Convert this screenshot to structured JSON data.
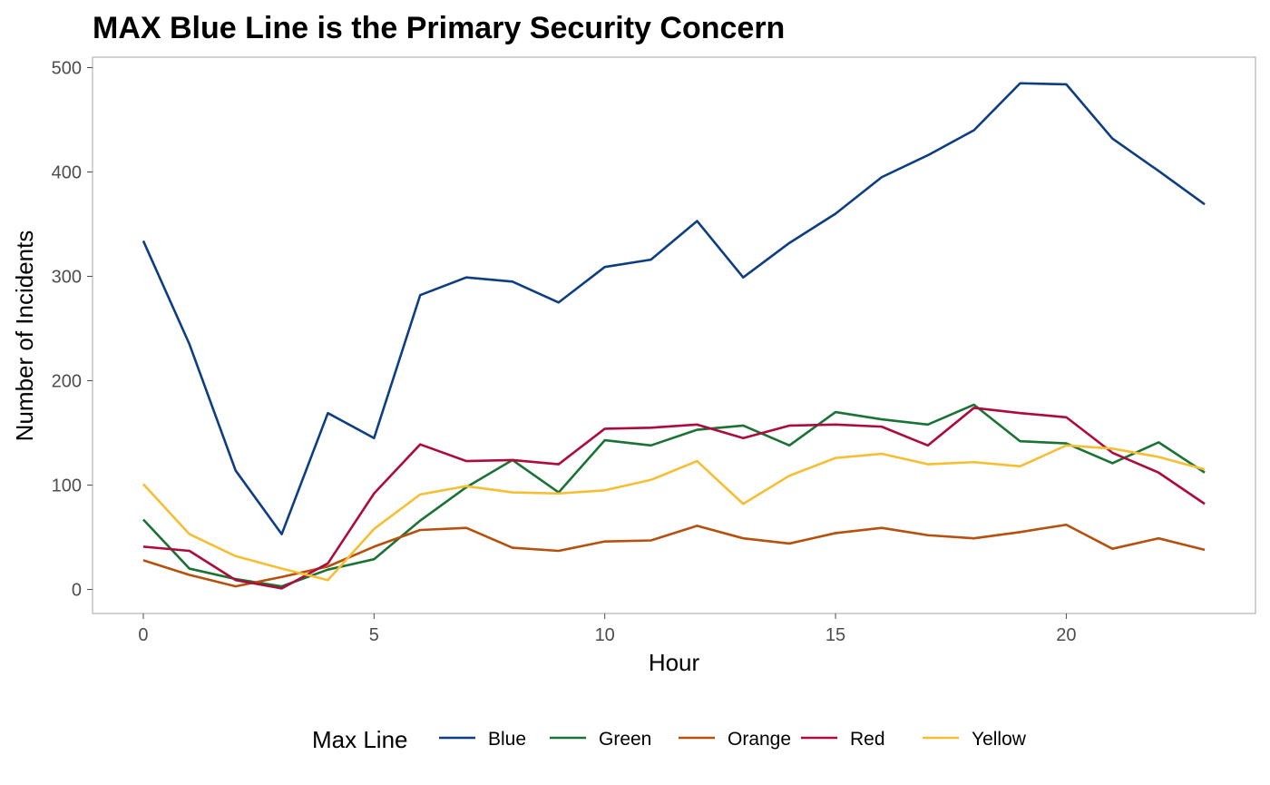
{
  "chart_data": {
    "type": "line",
    "title": "MAX Blue Line is the Primary Security Concern",
    "xlabel": "Hour",
    "ylabel": "Number of Incidents",
    "xlim": [
      -1.1,
      24.1
    ],
    "ylim": [
      -23,
      510
    ],
    "x_ticks": [
      0,
      5,
      10,
      15,
      20
    ],
    "y_ticks": [
      0,
      100,
      200,
      300,
      400,
      500
    ],
    "grid": false,
    "legend": {
      "title": "Max Line",
      "position": "bottom"
    },
    "x": [
      0,
      1,
      2,
      3,
      4,
      5,
      6,
      7,
      8,
      9,
      10,
      11,
      12,
      13,
      14,
      15,
      16,
      17,
      18,
      19,
      20,
      21,
      22,
      23
    ],
    "series": [
      {
        "name": "Blue",
        "color": "#0d3e82",
        "values": [
          334,
          235,
          114,
          53,
          169,
          145,
          282,
          299,
          295,
          275,
          309,
          316,
          353,
          299,
          332,
          360,
          395,
          416,
          440,
          485,
          484,
          432,
          401,
          369
        ]
      },
      {
        "name": "Green",
        "color": "#1a7335",
        "values": [
          67,
          20,
          10,
          3,
          19,
          29,
          66,
          98,
          124,
          93,
          143,
          138,
          153,
          157,
          138,
          170,
          163,
          158,
          177,
          142,
          140,
          121,
          141,
          112
        ]
      },
      {
        "name": "Orange",
        "color": "#b8500d",
        "values": [
          28,
          14,
          3,
          12,
          22,
          41,
          57,
          59,
          40,
          37,
          46,
          47,
          61,
          49,
          44,
          54,
          59,
          52,
          49,
          55,
          62,
          39,
          49,
          38
        ]
      },
      {
        "name": "Red",
        "color": "#ad0b3b",
        "values": [
          41,
          37,
          9,
          1,
          25,
          92,
          139,
          123,
          124,
          120,
          154,
          155,
          158,
          145,
          157,
          158,
          156,
          138,
          174,
          169,
          165,
          131,
          112,
          82
        ]
      },
      {
        "name": "Yellow",
        "color": "#f6be33",
        "values": [
          101,
          53,
          32,
          20,
          9,
          58,
          91,
          99,
          93,
          92,
          95,
          105,
          123,
          82,
          109,
          126,
          130,
          120,
          122,
          118,
          138,
          135,
          127,
          115
        ]
      }
    ]
  }
}
